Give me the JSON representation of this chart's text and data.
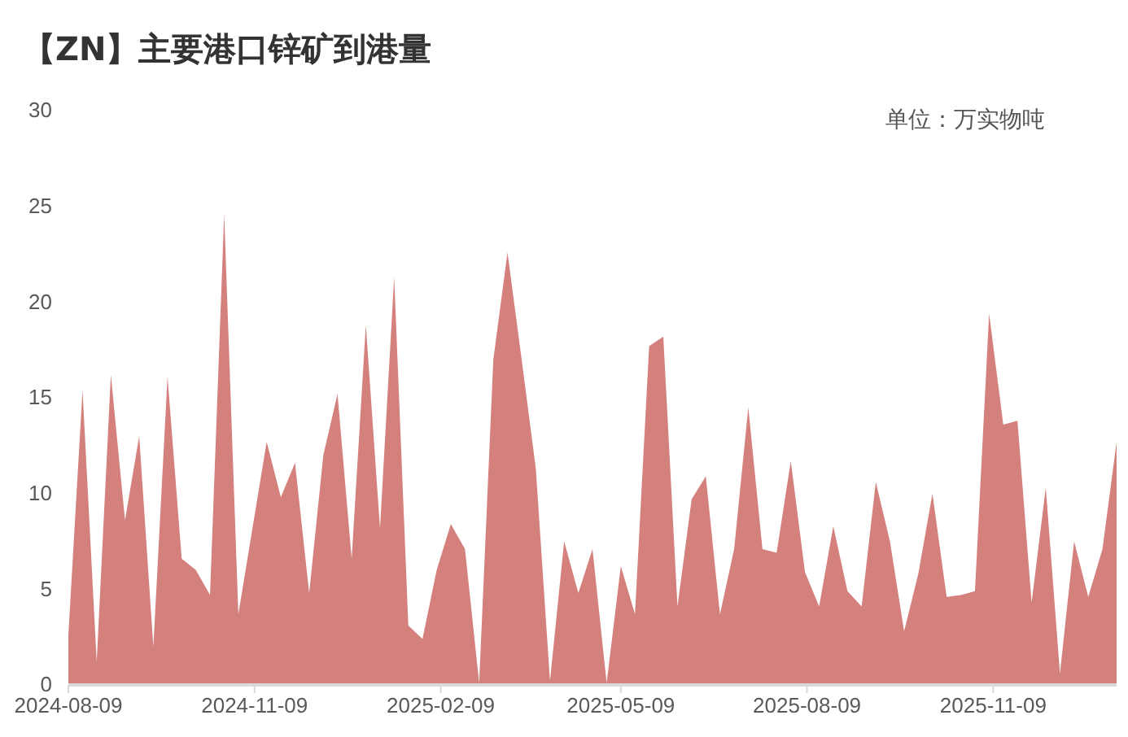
{
  "chart_data": {
    "type": "area",
    "title": "【ZN】主要港口锌矿到港量",
    "annotations": [
      "单位：万实物吨"
    ],
    "x": [
      "2024-08-09",
      "2024-08-16",
      "2024-08-23",
      "2024-08-30",
      "2024-09-06",
      "2024-09-13",
      "2024-09-20",
      "2024-09-27",
      "2024-10-04",
      "2024-10-11",
      "2024-10-18",
      "2024-10-25",
      "2024-11-01",
      "2024-11-08",
      "2024-11-15",
      "2024-11-22",
      "2024-11-29",
      "2024-12-06",
      "2024-12-13",
      "2024-12-20",
      "2024-12-27",
      "2025-01-03",
      "2025-01-10",
      "2025-01-17",
      "2025-01-24",
      "2025-01-31",
      "2025-02-07",
      "2025-02-14",
      "2025-02-21",
      "2025-02-28",
      "2025-03-07",
      "2025-03-14",
      "2025-03-21",
      "2025-03-28",
      "2025-04-04",
      "2025-04-11",
      "2025-04-18",
      "2025-04-25",
      "2025-05-02",
      "2025-05-09",
      "2025-05-16",
      "2025-05-23",
      "2025-05-30",
      "2025-06-06",
      "2025-06-13",
      "2025-06-20",
      "2025-06-27",
      "2025-07-04",
      "2025-07-11",
      "2025-07-18",
      "2025-07-25",
      "2025-08-01",
      "2025-08-08",
      "2025-08-15",
      "2025-08-22",
      "2025-08-29",
      "2025-09-05",
      "2025-09-12",
      "2025-09-19",
      "2025-09-26",
      "2025-10-03",
      "2025-10-10",
      "2025-10-17",
      "2025-10-24",
      "2025-10-31",
      "2025-11-07",
      "2025-11-14",
      "2025-11-21",
      "2025-11-28",
      "2025-12-05",
      "2025-12-12",
      "2025-12-19",
      "2025-12-26",
      "2026-01-02",
      "2026-01-09"
    ],
    "series": [
      {
        "color": "#d4817e",
        "values": [
          2.6,
          15.4,
          1.2,
          16.2,
          8.6,
          13.0,
          2.0,
          16.1,
          6.6,
          6.0,
          4.7,
          24.6,
          3.7,
          8.2,
          12.7,
          9.8,
          11.6,
          4.8,
          12.0,
          15.2,
          6.6,
          18.8,
          8.2,
          21.3,
          3.1,
          2.4,
          6.0,
          8.4,
          7.1,
          0.1,
          17,
          22.6,
          17,
          11.3,
          0.2,
          7.5,
          4.8,
          7.1,
          0.1,
          6.2,
          3.7,
          17.7,
          18.2,
          4.1,
          9.7,
          10.9,
          3.7,
          7.1,
          14.5,
          7.1,
          6.9,
          11.7,
          5.9,
          4.1,
          8.3,
          4.9,
          4.1,
          10.6,
          7.5,
          2.8,
          5.8,
          10.0,
          4.6,
          4.7,
          4.9,
          19.4,
          13.6,
          13.8,
          4.3,
          10.3,
          0.6,
          7.5,
          4.6,
          7.1,
          12.7
        ]
      }
    ],
    "xlim": [
      "2024-08-09",
      "2026-01-09"
    ],
    "xticks": [
      "2024-08-09",
      "2024-11-09",
      "2025-02-09",
      "2025-05-09",
      "2025-08-09",
      "2025-11-09"
    ],
    "ylim": [
      0,
      30
    ],
    "yticks": [
      0,
      5,
      10,
      15,
      20,
      25,
      30
    ]
  }
}
